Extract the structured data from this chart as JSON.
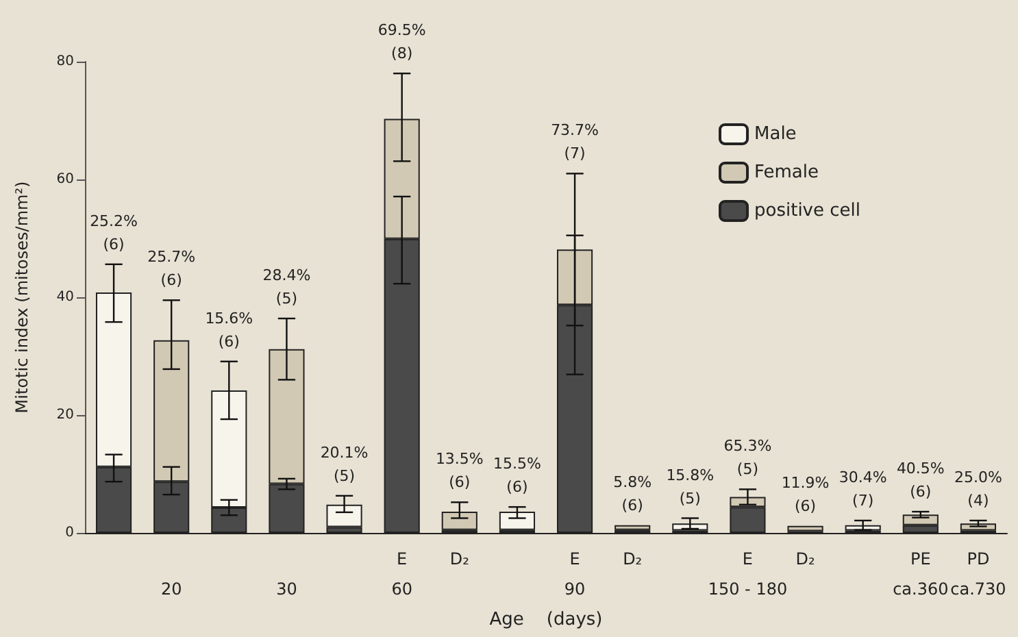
{
  "chart_data": {
    "type": "bar",
    "stacked": true,
    "xlabel": "Age    (days)",
    "ylabel": "Mitotic index (mitoses/mm²)",
    "ylim": [
      0,
      80
    ],
    "yticks": [
      0,
      20,
      40,
      60,
      80
    ],
    "grid": false,
    "legend": "top right",
    "categories": [
      null,
      "\n20",
      null,
      "\n30",
      null,
      "E\n60",
      "D₂",
      null,
      "E\n90",
      "D₂",
      null,
      "E\n150 - 180",
      "D₂",
      null,
      "PE\nca.360",
      "PD\nca.730"
    ],
    "series": [
      {
        "name": "positive cell",
        "color": "#4a4a4a",
        "values": [
          11.2,
          8.7,
          4.3,
          8.3,
          1.0,
          49.9,
          0.5,
          0.5,
          38.7,
          0.5,
          0.4,
          4.4,
          0.3,
          0.4,
          1.3,
          0.4
        ],
        "errors": [
          [
            8.7,
            13.3
          ],
          [
            6.5,
            11.2
          ],
          [
            3.0,
            5.6
          ],
          [
            7.4,
            9.2
          ],
          null,
          [
            42.3,
            57.1
          ],
          null,
          null,
          [
            26.9,
            50.5
          ],
          null,
          null,
          null,
          null,
          null,
          null,
          null
        ]
      },
      {
        "name": "Male",
        "color": "#f7f4ec",
        "values": [
          29.6,
          null,
          19.9,
          null,
          3.8,
          null,
          null,
          3.1,
          null,
          null,
          1.2,
          null,
          null,
          0.9,
          null,
          null
        ],
        "errors": [
          [
            35.8,
            45.6
          ],
          null,
          [
            19.3,
            29.1
          ],
          null,
          [
            3.5,
            6.3
          ],
          null,
          null,
          [
            2.5,
            4.4
          ],
          null,
          null,
          [
            0.7,
            2.5
          ],
          null,
          null,
          [
            0.5,
            2.1
          ],
          null,
          null
        ]
      },
      {
        "name": "Female",
        "color": "#d2c9b4",
        "values": [
          null,
          24.0,
          null,
          22.9,
          null,
          20.4,
          3.1,
          null,
          9.4,
          0.8,
          null,
          1.7,
          0.9,
          null,
          1.8,
          1.2
        ],
        "errors": [
          null,
          [
            27.8,
            39.5
          ],
          null,
          [
            26.0,
            36.4
          ],
          null,
          [
            63.1,
            78.0
          ],
          [
            2.5,
            5.2
          ],
          null,
          [
            35.2,
            61.0
          ],
          null,
          null,
          [
            4.8,
            7.4
          ],
          null,
          null,
          [
            2.6,
            3.6
          ],
          [
            1.1,
            2.1
          ]
        ]
      }
    ],
    "annotations": [
      {
        "text": "25.2%\n(6)",
        "y": 45.6
      },
      {
        "text": "25.7%\n(6)",
        "y": 39.5
      },
      {
        "text": "15.6%\n(6)",
        "y": 29.1
      },
      {
        "text": "28.4%\n(5)",
        "y": 36.4
      },
      {
        "text": "20.1%\n(5)",
        "y": 6.3
      },
      {
        "text": "69.5%\n(8)",
        "y": 78.0
      },
      {
        "text": "13.5%\n(6)",
        "y": 5.2
      },
      {
        "text": "15.5%\n(6)",
        "y": 4.4
      },
      {
        "text": "73.7%\n(7)",
        "y": 61.0
      },
      {
        "text": "5.8%\n(6)",
        "y": 1.3
      },
      {
        "text": "15.8%\n(5)",
        "y": 2.5
      },
      {
        "text": "65.3%\n(5)",
        "y": 7.4
      },
      {
        "text": "11.9%\n(6)",
        "y": 1.2
      },
      {
        "text": "30.4%\n(7)",
        "y": 2.1
      },
      {
        "text": "40.5%\n(6)",
        "y": 3.6
      },
      {
        "text": "25.0%\n(4)",
        "y": 2.1
      }
    ]
  }
}
